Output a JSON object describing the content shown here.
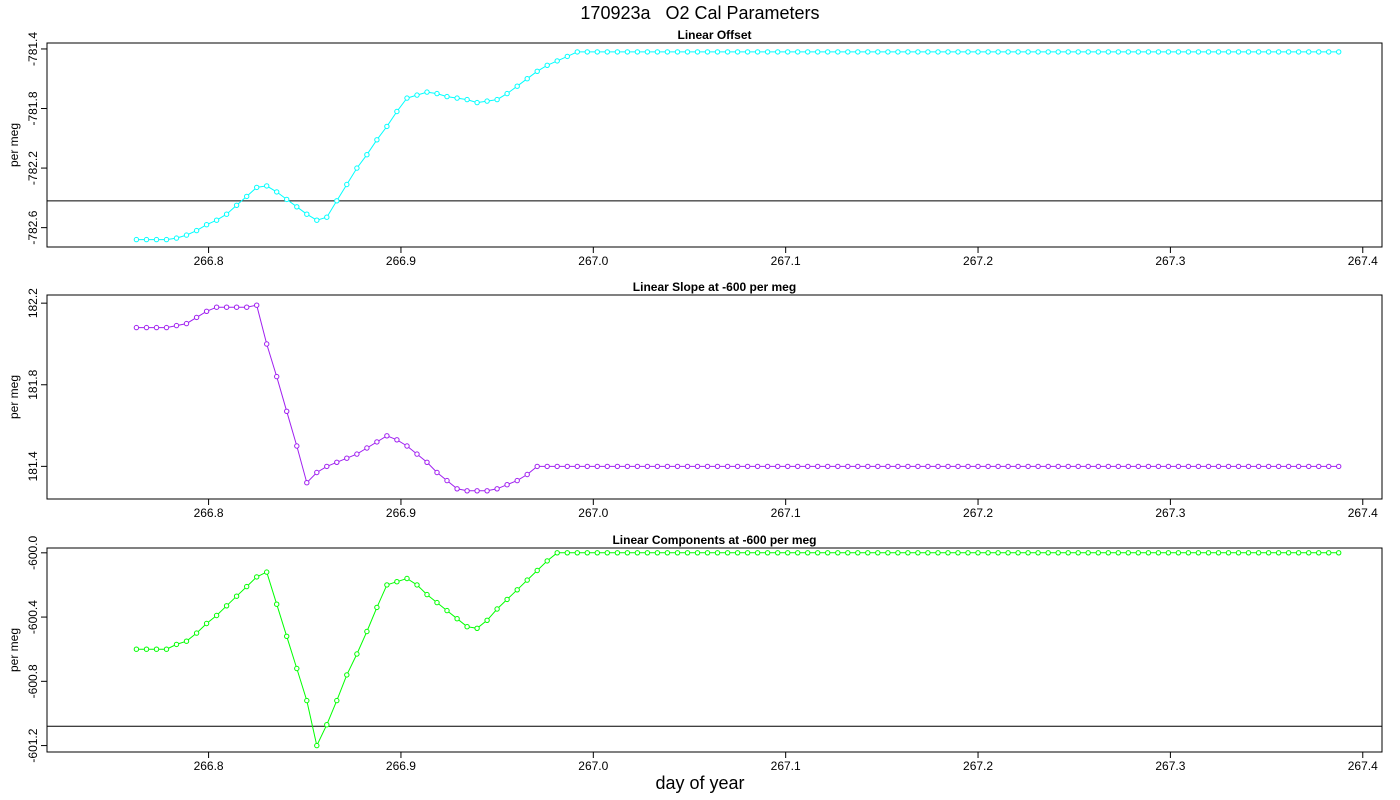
{
  "title": "170923a   O2 Cal Parameters",
  "xlabel": "day of year",
  "chart_data": [
    {
      "type": "line",
      "title": "Linear Offset",
      "ylabel": "per meg",
      "color": "#00ffff",
      "xlim": [
        266.716,
        267.41
      ],
      "ylim": [
        -782.73,
        -781.36
      ],
      "xticks": [
        "266.8",
        "266.9",
        "267.0",
        "267.1",
        "267.2",
        "267.3",
        "267.4"
      ],
      "yticks": [
        "-782.6",
        "-782.2",
        "-781.8",
        "-781.4"
      ],
      "hline": -782.42,
      "x_start": 266.7625,
      "x_step": 0.0052083,
      "tail_end": 267.3875,
      "y": [
        -782.68,
        -782.68,
        -782.68,
        -782.68,
        -782.67,
        -782.65,
        -782.62,
        -782.58,
        -782.55,
        -782.51,
        -782.45,
        -782.39,
        -782.33,
        -782.32,
        -782.36,
        -782.41,
        -782.46,
        -782.51,
        -782.55,
        -782.53,
        -782.42,
        -782.31,
        -782.2,
        -782.11,
        -782.01,
        -781.92,
        -781.82,
        -781.73,
        -781.71,
        -781.69,
        -781.7,
        -781.72,
        -781.73,
        -781.74,
        -781.76,
        -781.75,
        -781.74,
        -781.7,
        -781.65,
        -781.6,
        -781.55,
        -781.51,
        -781.48,
        -781.45,
        -781.42
      ],
      "tail": -781.42
    },
    {
      "type": "line",
      "title": "Linear Slope at -600 per meg",
      "ylabel": "per meg",
      "color": "#a020f0",
      "xlim": [
        266.716,
        267.41
      ],
      "ylim": [
        181.24,
        182.24
      ],
      "xticks": [
        "266.8",
        "266.9",
        "267.0",
        "267.1",
        "267.2",
        "267.3",
        "267.4"
      ],
      "yticks": [
        "181.4",
        "181.8",
        "182.2"
      ],
      "hline": null,
      "x_start": 266.7625,
      "x_step": 0.0052083,
      "tail_end": 267.3875,
      "y": [
        182.08,
        182.08,
        182.08,
        182.08,
        182.09,
        182.1,
        182.13,
        182.16,
        182.18,
        182.18,
        182.18,
        182.18,
        182.19,
        182.0,
        181.84,
        181.67,
        181.5,
        181.32,
        181.37,
        181.4,
        181.42,
        181.44,
        181.46,
        181.49,
        181.52,
        181.55,
        181.53,
        181.5,
        181.46,
        181.42,
        181.37,
        181.33,
        181.29,
        181.28,
        181.28,
        181.28,
        181.29,
        181.31,
        181.33,
        181.36,
        181.4
      ],
      "tail": 181.4
    },
    {
      "type": "line",
      "title": "Linear Components at -600 per meg",
      "ylabel": "per meg",
      "color": "#00ff00",
      "xlim": [
        266.716,
        267.41
      ],
      "ylim": [
        -601.24,
        -599.97
      ],
      "xticks": [
        "266.8",
        "266.9",
        "267.0",
        "267.1",
        "267.2",
        "267.3",
        "267.4"
      ],
      "yticks": [
        "-601.2",
        "-600.8",
        "-600.4",
        "-600.0"
      ],
      "hline": -601.08,
      "x_start": 266.7625,
      "x_step": 0.0052083,
      "tail_end": 267.3875,
      "y": [
        -600.6,
        -600.6,
        -600.6,
        -600.6,
        -600.57,
        -600.55,
        -600.5,
        -600.44,
        -600.39,
        -600.33,
        -600.27,
        -600.21,
        -600.15,
        -600.12,
        -600.32,
        -600.52,
        -600.72,
        -600.92,
        -601.2,
        -601.07,
        -600.92,
        -600.76,
        -600.63,
        -600.49,
        -600.34,
        -600.2,
        -600.18,
        -600.16,
        -600.2,
        -600.26,
        -600.31,
        -600.36,
        -600.41,
        -600.46,
        -600.47,
        -600.42,
        -600.35,
        -600.29,
        -600.23,
        -600.17,
        -600.11,
        -600.05,
        -600.0
      ],
      "tail": -600.0
    }
  ]
}
